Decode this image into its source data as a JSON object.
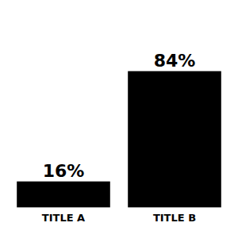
{
  "chart_data": {
    "type": "bar",
    "categories": [
      "TITLE A",
      "TITLE B"
    ],
    "values": [
      16,
      84
    ],
    "value_labels": [
      "16%",
      "84%"
    ],
    "data_labels": true,
    "color": "#000000",
    "ylim": [
      -14,
      122
    ],
    "tick_labels": false,
    "grid": false
  }
}
